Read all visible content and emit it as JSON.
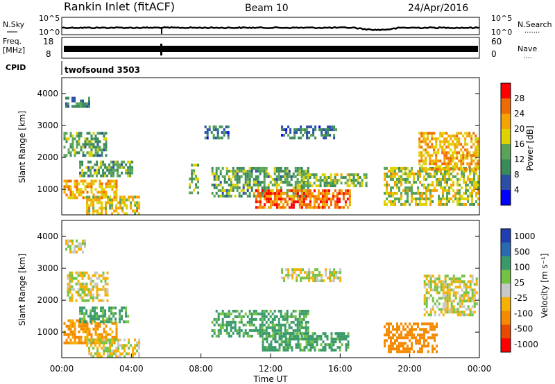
{
  "header": {
    "station": "Rankin Inlet (fitACF)",
    "beam": "Beam 10",
    "date": "24/Apr/2016"
  },
  "param_panels": {
    "nsky": {
      "left_label": "N.Sky",
      "right_label": "N.Search",
      "left_ticks": [
        "10^5",
        "10^0"
      ],
      "right_ticks": [
        "10^5",
        "10^0"
      ],
      "right_dots": "·······"
    },
    "freq": {
      "left_label_1": "Freq.",
      "left_label_2": "[MHz]",
      "right_label": "Nave",
      "left_ticks": [
        "18",
        "8"
      ],
      "right_ticks": [
        "60",
        "0"
      ],
      "right_dots": "····"
    },
    "cpid": {
      "left_label": "CPID",
      "program": "twofsound 3503"
    }
  },
  "colors": {
    "power_scale": [
      "#0000ff",
      "#2c4fa6",
      "#3a8a5a",
      "#5aa45a",
      "#dfd200",
      "#f5a300",
      "#ef6a00",
      "#ff0000"
    ],
    "velocity_scale": [
      "#ff0000",
      "#e84a00",
      "#f58a00",
      "#f5b000",
      "#c8c8c8",
      "#74c243",
      "#3a9a6a",
      "#2a6ab0",
      "#1f3fb0"
    ]
  },
  "chart_data": [
    {
      "type": "heatmap",
      "panel": "power",
      "ylabel": "Slant Range [km]",
      "ylim": [
        200,
        4500
      ],
      "yticks": [
        "1000",
        "2000",
        "3000",
        "4000"
      ],
      "xlim": [
        "00:00",
        "24:00"
      ],
      "colorbar": {
        "label": "Power [dB]",
        "ticks": [
          "28",
          "24",
          "20",
          "16",
          "12",
          "8",
          "4"
        ],
        "range": [
          0,
          30
        ]
      },
      "regions": [
        {
          "t0": 0.1,
          "t1": 2.6,
          "r0": 2100,
          "r1": 2800,
          "level": 12
        },
        {
          "t0": 0.2,
          "t1": 1.6,
          "r0": 3600,
          "r1": 3900,
          "level": 8
        },
        {
          "t0": 0.1,
          "t1": 3.1,
          "r0": 700,
          "r1": 1300,
          "level": 20
        },
        {
          "t0": 1.4,
          "t1": 4.4,
          "r0": 250,
          "r1": 800,
          "level": 18
        },
        {
          "t0": 1.0,
          "t1": 4.0,
          "r0": 1400,
          "r1": 1900,
          "level": 12
        },
        {
          "t0": 7.3,
          "t1": 7.8,
          "r0": 900,
          "r1": 1800,
          "level": 14
        },
        {
          "t0": 8.2,
          "t1": 9.6,
          "r0": 2600,
          "r1": 3000,
          "level": 8
        },
        {
          "t0": 8.6,
          "t1": 14.2,
          "r0": 800,
          "r1": 1700,
          "level": 12
        },
        {
          "t0": 11.0,
          "t1": 16.6,
          "r0": 400,
          "r1": 1000,
          "level": 24
        },
        {
          "t0": 12.6,
          "t1": 15.8,
          "r0": 2600,
          "r1": 3000,
          "level": 8
        },
        {
          "t0": 13.5,
          "t1": 17.5,
          "r0": 1100,
          "r1": 1500,
          "level": 14
        },
        {
          "t0": 18.5,
          "t1": 23.9,
          "r0": 500,
          "r1": 1700,
          "level": 16
        },
        {
          "t0": 20.5,
          "t1": 23.9,
          "r0": 1600,
          "r1": 2800,
          "level": 20
        }
      ]
    },
    {
      "type": "heatmap",
      "panel": "velocity",
      "xlabel": "Time UT",
      "ylabel": "Slant Range [km]",
      "ylim": [
        200,
        4500
      ],
      "yticks": [
        "1000",
        "2000",
        "3000",
        "4000"
      ],
      "xticks": [
        "00:00",
        "04:00",
        "08:00",
        "12:00",
        "16:00",
        "20:00",
        "00:00"
      ],
      "xlim": [
        "00:00",
        "24:00"
      ],
      "colorbar": {
        "label": "Velocity [m s⁻¹]",
        "ticks": [
          "1000",
          "500",
          "100",
          "25",
          "-25",
          "-100",
          "-500",
          "-1000"
        ]
      },
      "regions": [
        {
          "t0": 0.3,
          "t1": 2.6,
          "r0": 2000,
          "r1": 2900,
          "level": 0
        },
        {
          "t0": 0.2,
          "t1": 1.3,
          "r0": 3500,
          "r1": 3900,
          "level": 0
        },
        {
          "t0": 0.1,
          "t1": 3.1,
          "r0": 700,
          "r1": 1400,
          "level": -150
        },
        {
          "t0": 1.4,
          "t1": 4.4,
          "r0": 250,
          "r1": 800,
          "level": 0
        },
        {
          "t0": 1.0,
          "t1": 3.8,
          "r0": 1300,
          "r1": 1800,
          "level": 150
        },
        {
          "t0": 8.6,
          "t1": 14.2,
          "r0": 900,
          "r1": 1700,
          "level": 150
        },
        {
          "t0": 11.5,
          "t1": 16.5,
          "r0": 400,
          "r1": 1000,
          "level": 150
        },
        {
          "t0": 12.6,
          "t1": 16.0,
          "r0": 2600,
          "r1": 3000,
          "level": 0
        },
        {
          "t0": 18.5,
          "t1": 21.5,
          "r0": 400,
          "r1": 1300,
          "level": -300
        },
        {
          "t0": 20.8,
          "t1": 23.9,
          "r0": 1500,
          "r1": 2800,
          "level": 0
        }
      ]
    }
  ]
}
